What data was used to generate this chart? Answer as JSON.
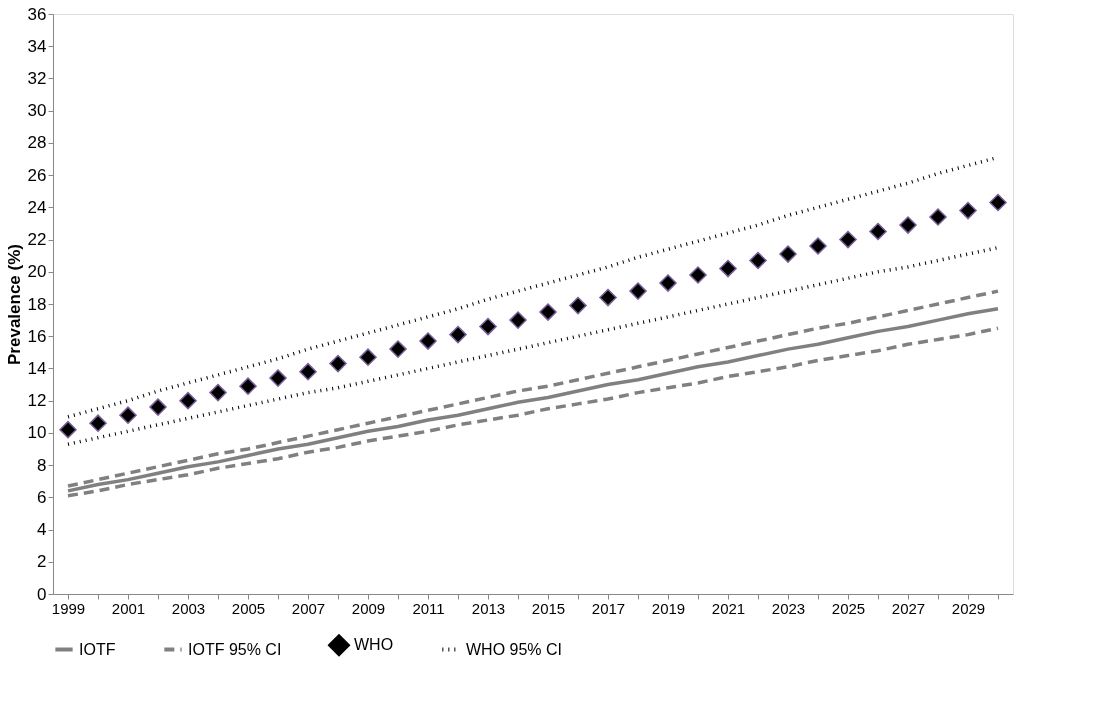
{
  "chart_data": {
    "type": "line",
    "ylabel": "Prevalence (%)",
    "categories": [
      "1999",
      null,
      "2001",
      null,
      "2003",
      null,
      "2005",
      null,
      "2007",
      null,
      "2009",
      null,
      "2011",
      null,
      "2013",
      null,
      "2015",
      null,
      "2017",
      null,
      "2019",
      null,
      "2021",
      null,
      "2023",
      null,
      "2025",
      null,
      "2027",
      null,
      "2029",
      null
    ],
    "ylim": [
      0,
      36
    ],
    "yticks": [
      0,
      2,
      4,
      6,
      8,
      10,
      12,
      14,
      16,
      18,
      20,
      22,
      24,
      26,
      28,
      30,
      32,
      34,
      36
    ],
    "grid": false,
    "legend": "bottom",
    "series": [
      {
        "name": "IOTF",
        "line_style": "solid",
        "color": "#808080",
        "values": [
          6.4,
          6.8,
          7.1,
          7.5,
          7.9,
          8.2,
          8.6,
          9.0,
          9.3,
          9.7,
          10.1,
          10.4,
          10.8,
          11.1,
          11.5,
          11.9,
          12.2,
          12.6,
          13.0,
          13.3,
          13.7,
          14.1,
          14.4,
          14.8,
          15.2,
          15.5,
          15.9,
          16.3,
          16.6,
          17.0,
          17.4,
          17.7
        ]
      },
      {
        "name": "IOTF 95% CI",
        "line_style": "dashed",
        "color": "#808080",
        "values": [
          6.7,
          7.1,
          7.5,
          7.9,
          8.3,
          8.7,
          9.0,
          9.4,
          9.8,
          10.2,
          10.6,
          11.0,
          11.4,
          11.8,
          12.2,
          12.6,
          12.9,
          13.3,
          13.7,
          14.1,
          14.5,
          14.9,
          15.3,
          15.7,
          16.1,
          16.5,
          16.8,
          17.2,
          17.6,
          18.0,
          18.4,
          18.8
        ]
      },
      {
        "line_style": "dashed",
        "color": "#808080",
        "values": [
          6.1,
          6.4,
          6.8,
          7.1,
          7.4,
          7.8,
          8.1,
          8.4,
          8.8,
          9.1,
          9.5,
          9.8,
          10.1,
          10.5,
          10.8,
          11.1,
          11.5,
          11.8,
          12.1,
          12.5,
          12.8,
          13.1,
          13.5,
          13.8,
          14.1,
          14.5,
          14.8,
          15.1,
          15.5,
          15.8,
          16.1,
          16.5
        ]
      },
      {
        "name": "WHO",
        "type": "scatter",
        "marker": "diamond",
        "color": "#000000",
        "values": [
          10.2,
          10.6,
          11.1,
          11.6,
          12.0,
          12.5,
          12.9,
          13.4,
          13.8,
          14.3,
          14.7,
          15.2,
          15.7,
          16.1,
          16.6,
          17.0,
          17.5,
          17.9,
          18.4,
          18.8,
          19.3,
          19.8,
          20.2,
          20.7,
          21.1,
          21.6,
          22.0,
          22.5,
          22.9,
          23.4,
          23.8,
          24.3
        ]
      },
      {
        "name": "WHO 95% CI",
        "line_style": "dotted",
        "color": "#000000",
        "values": [
          11.0,
          11.5,
          12.0,
          12.6,
          13.1,
          13.6,
          14.1,
          14.6,
          15.2,
          15.7,
          16.2,
          16.7,
          17.2,
          17.7,
          18.3,
          18.8,
          19.3,
          19.8,
          20.3,
          20.9,
          21.4,
          21.9,
          22.4,
          22.9,
          23.5,
          24.0,
          24.5,
          25.0,
          25.5,
          26.1,
          26.6,
          27.1
        ]
      },
      {
        "line_style": "dotted",
        "color": "#000000",
        "values": [
          9.3,
          9.7,
          10.1,
          10.5,
          10.9,
          11.3,
          11.7,
          12.1,
          12.5,
          12.8,
          13.2,
          13.6,
          14.0,
          14.4,
          14.8,
          15.2,
          15.6,
          16.0,
          16.4,
          16.8,
          17.2,
          17.6,
          18.0,
          18.4,
          18.8,
          19.2,
          19.6,
          20.0,
          20.3,
          20.7,
          21.1,
          21.5
        ]
      }
    ]
  }
}
